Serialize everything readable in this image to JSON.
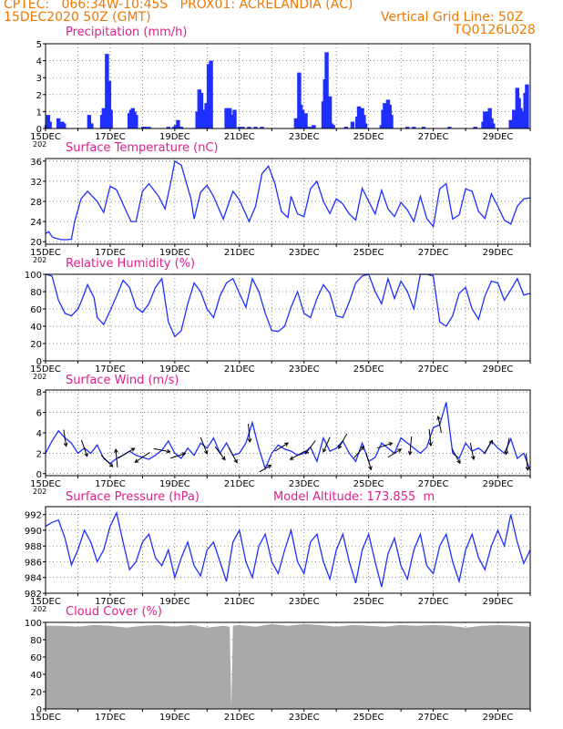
{
  "header": {
    "line1_left": "CPTEC:   066:34W-10:45S   PROX01: ACRELANDIA (AC)",
    "line2_left": "15DEC2020 50Z (GMT)",
    "line2_right": "Vertical Grid Line: 50Z",
    "line3_right": "TQ0126L028",
    "cut_label": "202"
  },
  "colors": {
    "header": "#f07800",
    "title": "#e0208a",
    "series": "#1f2fff",
    "cloud": "#a9a9a9",
    "arrow": "#000000"
  },
  "chart_data": [
    {
      "id": "precip",
      "type": "bar",
      "title": "Precipitation (mm/h)",
      "ylim": [
        0,
        5
      ],
      "yticks": [
        0,
        1,
        2,
        3,
        4,
        5
      ],
      "xlim": [
        15,
        30
      ],
      "xticks": [
        "15DEC",
        "17DEC",
        "19DEC",
        "21DEC",
        "23DEC",
        "25DEC",
        "27DEC",
        "29DEC"
      ],
      "x": [
        15.03,
        15.08,
        15.13,
        15.4,
        15.47,
        15.52,
        15.57,
        16.35,
        16.42,
        16.75,
        16.8,
        16.85,
        16.9,
        16.97,
        17.02,
        17.6,
        17.65,
        17.7,
        17.75,
        17.8,
        18.02,
        18.07,
        18.2,
        18.8,
        18.98,
        19.03,
        19.1,
        19.15,
        19.2,
        19.7,
        19.76,
        19.82,
        19.87,
        19.93,
        19.98,
        20.05,
        20.12,
        20.6,
        20.65,
        20.7,
        20.75,
        20.8,
        20.85,
        21.0,
        21.1,
        21.3,
        21.5,
        21.7,
        22.75,
        22.85,
        22.9,
        22.95,
        23.0,
        23.05,
        23.1,
        23.2,
        23.3,
        23.6,
        23.65,
        23.7,
        23.75,
        23.8,
        23.85,
        23.9,
        24.3,
        24.5,
        24.65,
        24.7,
        24.75,
        24.8,
        24.85,
        24.9,
        25.4,
        25.45,
        25.5,
        25.55,
        25.6,
        25.65,
        25.7,
        26.2,
        26.4,
        26.7,
        27.5,
        28.3,
        28.55,
        28.6,
        28.65,
        28.7,
        28.75,
        28.8,
        28.85,
        29.4,
        29.5,
        29.6,
        29.65,
        29.7,
        29.75,
        29.8,
        29.85,
        29.9
      ],
      "values": [
        0.2,
        0.8,
        0.4,
        0.6,
        0.1,
        0.4,
        0.3,
        0.8,
        0.3,
        0.8,
        1.2,
        0.5,
        4.4,
        2.8,
        1.1,
        0.9,
        1.1,
        1.2,
        1.0,
        0.8,
        0.1,
        0.1,
        0.1,
        0.1,
        0.1,
        0.2,
        0.5,
        0.1,
        0.1,
        1.0,
        2.3,
        2.1,
        1.1,
        0.6,
        1.5,
        3.8,
        4.0,
        1.2,
        0.4,
        1.2,
        0.8,
        0.8,
        1.1,
        0.1,
        0.1,
        0.1,
        0.1,
        0.1,
        0.6,
        3.3,
        1.4,
        1.1,
        0.3,
        0.9,
        0.1,
        0.1,
        0.2,
        1.6,
        2.9,
        4.5,
        1.3,
        1.9,
        0.3,
        0.2,
        0.1,
        0.4,
        0.7,
        1.3,
        1.0,
        1.2,
        0.8,
        0.3,
        0.2,
        1.1,
        1.5,
        0.8,
        1.7,
        1.4,
        0.8,
        0.1,
        0.1,
        0.1,
        0.1,
        0.1,
        0.4,
        1.0,
        0.8,
        1.0,
        1.2,
        0.6,
        0.3,
        0.5,
        1.1,
        2.4,
        1.8,
        1.2,
        1.0,
        0.6,
        2.1,
        2.6
      ]
    },
    {
      "id": "temp",
      "type": "line",
      "title": "Surface Temperature (nC)",
      "ylim": [
        19.5,
        36.5
      ],
      "yticks": [
        20,
        24,
        28,
        32,
        36
      ],
      "xlim": [
        15,
        30
      ],
      "xticks": [
        "15DEC",
        "17DEC",
        "19DEC",
        "21DEC",
        "23DEC",
        "25DEC",
        "27DEC",
        "29DEC"
      ],
      "x": [
        15.0,
        15.1,
        15.2,
        15.3,
        15.5,
        15.65,
        15.8,
        15.9,
        16.1,
        16.3,
        16.6,
        16.8,
        17.0,
        17.2,
        17.5,
        17.65,
        17.8,
        18.0,
        18.2,
        18.5,
        18.7,
        18.9,
        19.0,
        19.2,
        19.5,
        19.6,
        19.8,
        20.0,
        20.2,
        20.4,
        20.5,
        20.8,
        21.0,
        21.3,
        21.5,
        21.7,
        21.9,
        22.1,
        22.3,
        22.5,
        22.6,
        22.8,
        23.0,
        23.2,
        23.4,
        23.6,
        23.8,
        24.0,
        24.2,
        24.4,
        24.6,
        24.8,
        25.0,
        25.2,
        25.4,
        25.6,
        25.8,
        26.0,
        26.2,
        26.4,
        26.6,
        26.8,
        27.0,
        27.2,
        27.4,
        27.6,
        27.8,
        28.0,
        28.2,
        28.4,
        28.6,
        28.8,
        29.0,
        29.2,
        29.4,
        29.6,
        29.8,
        30.0
      ],
      "values": [
        21.6,
        22.0,
        21.0,
        20.7,
        20.4,
        20.4,
        20.5,
        24.0,
        28.5,
        30.0,
        28.0,
        25.8,
        31.0,
        30.3,
        26.0,
        24.0,
        24.0,
        30.0,
        31.5,
        29.0,
        26.5,
        32.5,
        36.0,
        35.2,
        28.5,
        24.5,
        29.8,
        31.2,
        29.0,
        26.0,
        24.5,
        30.0,
        28.3,
        24.0,
        27.0,
        33.5,
        35.0,
        31.5,
        26.0,
        24.8,
        29.0,
        25.5,
        25.0,
        30.5,
        32.0,
        28.0,
        25.6,
        28.5,
        27.5,
        25.5,
        24.3,
        30.6,
        28.0,
        25.5,
        30.2,
        26.5,
        25.0,
        27.8,
        26.3,
        24.0,
        29.0,
        24.6,
        23.0,
        30.5,
        31.5,
        24.5,
        25.3,
        30.5,
        30.0,
        26.0,
        24.6,
        29.5,
        27.0,
        24.3,
        23.5,
        27.0,
        28.5,
        28.7
      ]
    },
    {
      "id": "rh",
      "type": "line",
      "title": "Relative Humidity (%)",
      "ylim": [
        0,
        100
      ],
      "yticks": [
        0,
        20,
        40,
        60,
        80,
        100
      ],
      "xlim": [
        15,
        30
      ],
      "xticks": [
        "15DEC",
        "17DEC",
        "19DEC",
        "21DEC",
        "23DEC",
        "25DEC",
        "27DEC",
        "29DEC"
      ],
      "x": [
        15.0,
        15.2,
        15.4,
        15.6,
        15.8,
        16.0,
        16.1,
        16.3,
        16.5,
        16.6,
        16.8,
        17.0,
        17.2,
        17.4,
        17.6,
        17.8,
        18.0,
        18.2,
        18.4,
        18.6,
        18.8,
        19.0,
        19.2,
        19.4,
        19.6,
        19.8,
        20.0,
        20.2,
        20.4,
        20.6,
        20.8,
        21.0,
        21.2,
        21.4,
        21.6,
        21.8,
        22.0,
        22.2,
        22.4,
        22.6,
        22.8,
        23.0,
        23.2,
        23.4,
        23.6,
        23.8,
        24.0,
        24.2,
        24.4,
        24.6,
        24.8,
        25.0,
        25.2,
        25.4,
        25.6,
        25.8,
        26.0,
        26.2,
        26.4,
        26.6,
        26.8,
        27.0,
        27.2,
        27.4,
        27.6,
        27.8,
        28.0,
        28.2,
        28.4,
        28.6,
        28.8,
        29.0,
        29.2,
        29.4,
        29.6,
        29.8,
        30.0
      ],
      "values": [
        100,
        98,
        70,
        55,
        52,
        60,
        68,
        88,
        73,
        50,
        42,
        58,
        75,
        93,
        85,
        62,
        56,
        66,
        85,
        95,
        45,
        28,
        35,
        66,
        90,
        80,
        60,
        50,
        75,
        90,
        95,
        78,
        62,
        95,
        80,
        55,
        35,
        34,
        40,
        62,
        80,
        55,
        50,
        72,
        88,
        78,
        52,
        50,
        68,
        90,
        98,
        100,
        80,
        66,
        95,
        72,
        92,
        80,
        60,
        100,
        100,
        98,
        45,
        40,
        52,
        78,
        85,
        60,
        48,
        75,
        92,
        90,
        70,
        82,
        95,
        76,
        78
      ]
    },
    {
      "id": "wind",
      "type": "line",
      "title": "Surface Wind (m/s)",
      "ylim": [
        -0.2,
        8.2
      ],
      "yticks": [
        0,
        2,
        4,
        6,
        8
      ],
      "xlim": [
        15,
        30
      ],
      "xticks": [
        "15DEC",
        "17DEC",
        "19DEC",
        "21DEC",
        "23DEC",
        "25DEC",
        "27DEC",
        "29DEC"
      ],
      "x": [
        15.0,
        15.2,
        15.4,
        15.6,
        15.8,
        16.0,
        16.2,
        16.4,
        16.6,
        16.8,
        17.0,
        17.2,
        17.4,
        17.6,
        17.8,
        18.0,
        18.2,
        18.4,
        18.6,
        18.8,
        19.0,
        19.2,
        19.4,
        19.6,
        19.8,
        20.0,
        20.2,
        20.4,
        20.6,
        20.8,
        21.0,
        21.2,
        21.4,
        21.6,
        21.8,
        22.0,
        22.2,
        22.4,
        22.6,
        22.8,
        23.0,
        23.2,
        23.4,
        23.6,
        23.8,
        24.0,
        24.2,
        24.4,
        24.6,
        24.8,
        25.0,
        25.2,
        25.4,
        25.6,
        25.8,
        26.0,
        26.2,
        26.4,
        26.6,
        26.8,
        27.0,
        27.2,
        27.4,
        27.6,
        27.8,
        28.0,
        28.2,
        28.4,
        28.6,
        28.8,
        29.0,
        29.2,
        29.4,
        29.6,
        29.8,
        30.0
      ],
      "values": [
        2.0,
        3.2,
        4.2,
        3.5,
        3.0,
        2.0,
        2.5,
        2.0,
        2.8,
        1.5,
        1.0,
        1.5,
        1.8,
        2.2,
        1.8,
        1.6,
        1.4,
        1.8,
        2.3,
        3.2,
        2.0,
        1.5,
        2.5,
        1.8,
        3.0,
        2.5,
        3.5,
        2.0,
        3.0,
        1.8,
        2.0,
        3.0,
        5.0,
        2.5,
        0.5,
        2.0,
        2.8,
        2.4,
        2.2,
        1.8,
        2.0,
        2.6,
        1.2,
        3.5,
        2.2,
        2.5,
        3.2,
        2.0,
        1.2,
        3.0,
        1.2,
        1.6,
        3.0,
        2.5,
        2.0,
        3.5,
        3.0,
        2.5,
        2.0,
        2.6,
        4.5,
        4.8,
        7.0,
        2.0,
        1.5,
        3.0,
        2.2,
        2.5,
        2.0,
        3.2,
        2.5,
        2.0,
        3.4,
        1.5,
        2.0,
        0.3
      ],
      "arrows": [
        {
          "x": 15.6,
          "u": 0.15,
          "v": -1.0
        },
        {
          "x": 16.2,
          "u": 0.35,
          "v": -1.0
        },
        {
          "x": 16.9,
          "u": 0.7,
          "v": -0.7
        },
        {
          "x": 17.2,
          "u": -0.1,
          "v": 1.1
        },
        {
          "x": 17.5,
          "u": 1.0,
          "v": 0.6
        },
        {
          "x": 18.0,
          "u": -0.9,
          "v": -0.6
        },
        {
          "x": 18.6,
          "u": 1.0,
          "v": -0.2
        },
        {
          "x": 19.1,
          "u": 0.9,
          "v": 0.3
        },
        {
          "x": 19.9,
          "u": 0.4,
          "v": -1.0
        },
        {
          "x": 20.4,
          "u": 0.6,
          "v": -0.8
        },
        {
          "x": 20.8,
          "u": 0.5,
          "v": -0.9
        },
        {
          "x": 21.3,
          "u": 0.1,
          "v": -1.1
        },
        {
          "x": 21.8,
          "u": 0.7,
          "v": 0.4
        },
        {
          "x": 22.3,
          "u": 0.8,
          "v": 0.5
        },
        {
          "x": 22.8,
          "u": -0.9,
          "v": -0.5
        },
        {
          "x": 23.2,
          "u": -0.6,
          "v": -0.8
        },
        {
          "x": 23.7,
          "u": -0.4,
          "v": -0.9
        },
        {
          "x": 24.2,
          "u": -0.5,
          "v": -0.9
        },
        {
          "x": 24.7,
          "u": 0.6,
          "v": 0.7
        },
        {
          "x": 25.0,
          "u": 0.3,
          "v": -1.0
        },
        {
          "x": 25.5,
          "u": 0.9,
          "v": 0.3
        },
        {
          "x": 25.8,
          "u": 0.8,
          "v": 0.5
        },
        {
          "x": 26.3,
          "u": -0.1,
          "v": -1.1
        },
        {
          "x": 26.9,
          "u": 0.1,
          "v": -1.0
        },
        {
          "x": 27.2,
          "u": -0.2,
          "v": 1.0
        },
        {
          "x": 27.7,
          "u": 0.5,
          "v": -0.9
        },
        {
          "x": 28.2,
          "u": 0.2,
          "v": -1.0
        },
        {
          "x": 28.7,
          "u": 0.5,
          "v": 0.8
        },
        {
          "x": 29.3,
          "u": -0.2,
          "v": -1.0
        },
        {
          "x": 29.9,
          "u": 0.1,
          "v": -1.0
        }
      ]
    },
    {
      "id": "press",
      "type": "line",
      "title": "Surface Pressure (hPa)",
      "annotation": "Model Altitude: 173.855  m",
      "ylim": [
        982,
        993
      ],
      "yticks": [
        982,
        984,
        986,
        988,
        990,
        992
      ],
      "xlim": [
        15,
        30
      ],
      "xticks": [
        "15DEC",
        "17DEC",
        "19DEC",
        "21DEC",
        "23DEC",
        "25DEC",
        "27DEC",
        "29DEC"
      ],
      "x": [
        15.0,
        15.2,
        15.4,
        15.6,
        15.8,
        16.0,
        16.2,
        16.4,
        16.6,
        16.8,
        17.0,
        17.2,
        17.4,
        17.6,
        17.8,
        18.0,
        18.2,
        18.4,
        18.6,
        18.8,
        19.0,
        19.2,
        19.4,
        19.6,
        19.8,
        20.0,
        20.2,
        20.4,
        20.6,
        20.8,
        21.0,
        21.2,
        21.4,
        21.6,
        21.8,
        22.0,
        22.2,
        22.4,
        22.6,
        22.8,
        23.0,
        23.2,
        23.4,
        23.6,
        23.8,
        24.0,
        24.2,
        24.4,
        24.6,
        24.8,
        25.0,
        25.2,
        25.4,
        25.6,
        25.8,
        26.0,
        26.2,
        26.4,
        26.6,
        26.8,
        27.0,
        27.2,
        27.4,
        27.6,
        27.8,
        28.0,
        28.2,
        28.4,
        28.6,
        28.8,
        29.0,
        29.2,
        29.4,
        29.6,
        29.8,
        30.0
      ],
      "values": [
        990.5,
        991.0,
        991.3,
        989.0,
        985.6,
        987.5,
        990.0,
        988.5,
        986.0,
        987.5,
        990.5,
        992.2,
        988.5,
        985.0,
        986.0,
        988.5,
        989.5,
        986.5,
        985.5,
        987.5,
        984.0,
        986.5,
        988.5,
        985.5,
        984.2,
        987.5,
        988.5,
        986.0,
        983.5,
        988.5,
        990.0,
        986.0,
        984.0,
        988.0,
        989.5,
        986.0,
        984.5,
        987.5,
        990.0,
        986.0,
        984.5,
        988.5,
        989.5,
        986.0,
        983.8,
        987.5,
        989.5,
        986.0,
        983.3,
        987.5,
        989.5,
        986.0,
        982.8,
        987.0,
        989.0,
        985.5,
        983.8,
        987.5,
        989.5,
        985.5,
        984.5,
        988.0,
        989.5,
        986.0,
        983.5,
        987.5,
        989.5,
        986.5,
        985.0,
        988.0,
        990.0,
        988.0,
        992.0,
        988.5,
        985.8,
        987.5
      ]
    },
    {
      "id": "cloud",
      "type": "area",
      "title": "Cloud Cover (%)",
      "ylim": [
        0,
        100
      ],
      "yticks": [
        0,
        20,
        40,
        60,
        80,
        100
      ],
      "xlim": [
        15,
        30
      ],
      "xticks": [
        "15DEC",
        "17DEC",
        "19DEC",
        "21DEC",
        "23DEC",
        "25DEC",
        "27DEC",
        "29DEC"
      ],
      "x": [
        15.0,
        15.5,
        16.0,
        16.5,
        17.0,
        17.5,
        18.0,
        18.5,
        19.0,
        19.5,
        20.0,
        20.5,
        20.7,
        20.75,
        20.8,
        21.0,
        21.5,
        22.0,
        22.5,
        23.0,
        23.5,
        24.0,
        24.5,
        25.0,
        25.5,
        26.0,
        26.5,
        27.0,
        27.5,
        28.0,
        28.5,
        29.0,
        29.5,
        30.0
      ],
      "values": [
        96,
        96,
        95,
        97,
        96,
        94,
        96,
        97,
        95,
        97,
        94,
        96,
        95,
        0,
        96,
        97,
        95,
        98,
        96,
        98,
        97,
        95,
        97,
        96,
        95,
        97,
        96,
        97,
        96,
        94,
        96,
        97,
        96,
        95
      ]
    }
  ]
}
